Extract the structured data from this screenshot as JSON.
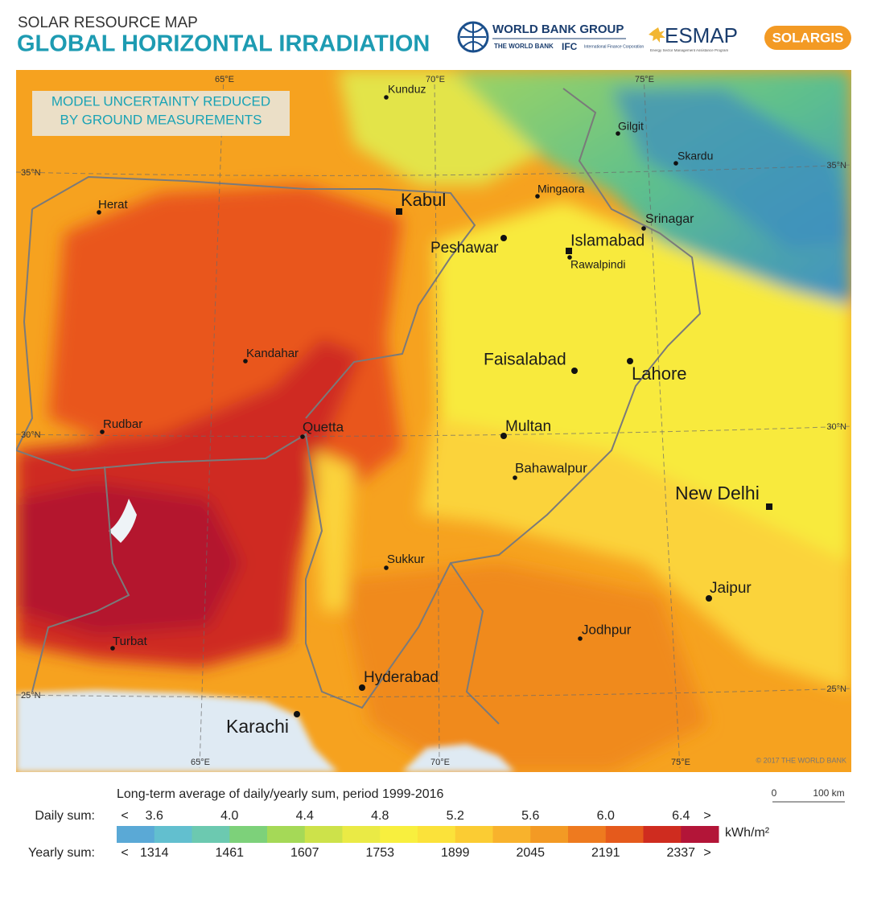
{
  "header": {
    "subtitle": "SOLAR RESOURCE MAP",
    "title": "GLOBAL HORIZONTAL IRRADIATION"
  },
  "logos": {
    "world_bank_group": "WORLD BANK GROUP",
    "the_world_bank": "THE WORLD BANK",
    "ifc": "IFC",
    "ifc_name": "International Finance Corporation",
    "esmap": "ESMAP",
    "esmap_name": "Energy Sector Management Assistance Program",
    "solargis": "SOLARGIS"
  },
  "map": {
    "notice": [
      "MODEL UNCERTAINTY REDUCED",
      "BY GROUND MEASUREMENTS"
    ],
    "longitudes": [
      "65°E",
      "70°E",
      "75°E"
    ],
    "latitudes": [
      "35°N",
      "30°N",
      "25°N"
    ],
    "cities": [
      "Kunduz",
      "Gilgit",
      "Skardu",
      "Herat",
      "Kabul",
      "Mingaora",
      "Srinagar",
      "Peshawar",
      "Islamabad",
      "Rawalpindi",
      "Kandahar",
      "Faisalabad",
      "Lahore",
      "Rudbar",
      "Quetta",
      "Multan",
      "Bahawalpur",
      "New Delhi",
      "Sukkur",
      "Jaipur",
      "Jodhpur",
      "Turbat",
      "Hyderabad",
      "Karachi"
    ],
    "copyright": "© 2017 THE WORLD BANK"
  },
  "legend": {
    "caption": "Long-term average of daily/yearly sum, period 1999-2016",
    "daily_label": "Daily sum:",
    "yearly_label": "Yearly sum:",
    "less": "<",
    "more": ">",
    "unit": "kWh/m²",
    "daily": [
      "3.6",
      "4.0",
      "4.4",
      "4.8",
      "5.2",
      "5.6",
      "6.0",
      "6.4"
    ],
    "yearly": [
      "1314",
      "1461",
      "1607",
      "1753",
      "1899",
      "2045",
      "2191",
      "2337"
    ],
    "colors": [
      "#5aa9d6",
      "#62bfcf",
      "#6cc9b0",
      "#7dd17a",
      "#a5d957",
      "#cde24a",
      "#eaea45",
      "#f8ef3e",
      "#fbe23a",
      "#fbcc33",
      "#f8b22c",
      "#f39a24",
      "#ee7a1f",
      "#e55a1c",
      "#cf2c1f",
      "#b31538"
    ],
    "scale": [
      "0",
      "100 km"
    ]
  }
}
